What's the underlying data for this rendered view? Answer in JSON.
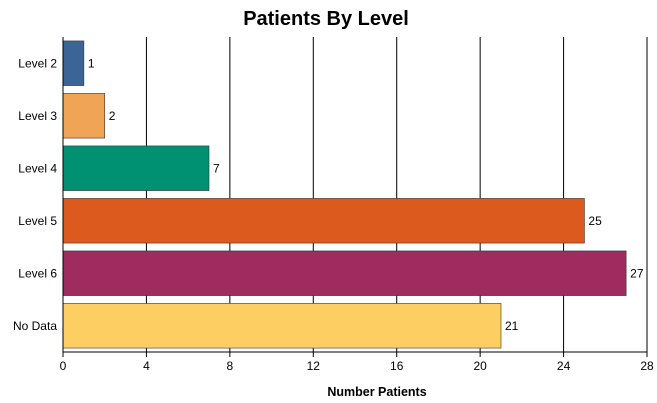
{
  "chart_data": {
    "type": "bar",
    "orientation": "horizontal",
    "title": "Patients By Level",
    "xlabel": "Number Patients",
    "ylabel": "",
    "xlim": [
      0,
      28
    ],
    "x_ticks": [
      "0",
      "4",
      "8",
      "12",
      "16",
      "20",
      "24",
      "28"
    ],
    "grid": "vertical",
    "legend": "none",
    "categories": [
      "Level 2",
      "Level 3",
      "Level 4",
      "Level 5",
      "Level 6",
      "No Data"
    ],
    "values": [
      1,
      2,
      7,
      25,
      27,
      21
    ],
    "value_labels": [
      "1",
      "2",
      "7",
      "25",
      "27",
      "21"
    ],
    "colors": [
      "#3b6596",
      "#f0a455",
      "#009072",
      "#dd5a1f",
      "#a02b5e",
      "#fdcf62"
    ]
  }
}
